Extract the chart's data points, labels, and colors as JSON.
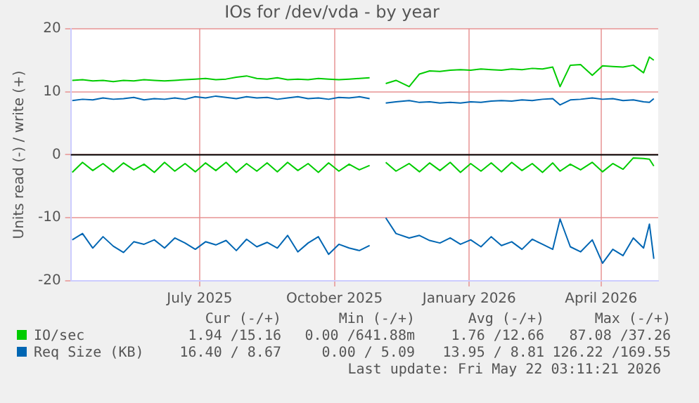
{
  "chart_data": {
    "type": "line",
    "title": "IOs for /dev/vda - by year",
    "ylabel": "Units read (-) / write (+)",
    "x": [
      "2025-04-05",
      "2025-04-12",
      "2025-04-19",
      "2025-04-26",
      "2025-05-03",
      "2025-05-10",
      "2025-05-17",
      "2025-05-24",
      "2025-05-31",
      "2025-06-07",
      "2025-06-14",
      "2025-06-21",
      "2025-06-28",
      "2025-07-05",
      "2025-07-12",
      "2025-07-19",
      "2025-07-26",
      "2025-08-02",
      "2025-08-09",
      "2025-08-16",
      "2025-08-23",
      "2025-08-30",
      "2025-09-06",
      "2025-09-13",
      "2025-09-20",
      "2025-09-27",
      "2025-10-04",
      "2025-10-11",
      "2025-10-18",
      "2025-10-25",
      "2025-11-01",
      "2025-11-05",
      "2025-11-12",
      "2025-11-21",
      "2025-11-28",
      "2025-12-05",
      "2025-12-12",
      "2025-12-19",
      "2025-12-26",
      "2026-01-02",
      "2026-01-09",
      "2026-01-16",
      "2026-01-23",
      "2026-01-30",
      "2026-02-06",
      "2026-02-13",
      "2026-02-20",
      "2026-02-27",
      "2026-03-04",
      "2026-03-11",
      "2026-03-18",
      "2026-03-26",
      "2026-04-02",
      "2026-04-09",
      "2026-04-16",
      "2026-04-23",
      "2026-04-30",
      "2026-05-04",
      "2026-05-07"
    ],
    "series": [
      {
        "name": "IO/sec",
        "color": "#00cc00",
        "values": [
          11.8,
          11.9,
          11.7,
          11.8,
          11.6,
          11.8,
          11.7,
          11.9,
          11.8,
          11.7,
          11.8,
          11.9,
          12.0,
          12.1,
          11.9,
          12.0,
          12.3,
          12.5,
          12.1,
          12.0,
          12.2,
          11.9,
          12.0,
          11.9,
          12.1,
          12.0,
          11.9,
          12.0,
          12.1,
          12.2,
          null,
          11.3,
          11.8,
          10.8,
          12.8,
          13.3,
          13.2,
          13.4,
          13.5,
          13.4,
          13.6,
          13.5,
          13.4,
          13.6,
          13.5,
          13.7,
          13.6,
          13.9,
          10.8,
          14.2,
          14.3,
          12.6,
          14.1,
          14.0,
          13.9,
          14.2,
          13.0,
          15.5,
          15.0
        ]
      },
      {
        "color": "#00cc00",
        "values": [
          -2.8,
          -1.2,
          -2.5,
          -1.4,
          -2.7,
          -1.3,
          -2.4,
          -1.5,
          -2.8,
          -1.2,
          -2.6,
          -1.4,
          -2.7,
          -1.3,
          -2.5,
          -1.2,
          -2.8,
          -1.4,
          -2.6,
          -1.3,
          -2.7,
          -1.2,
          -2.5,
          -1.4,
          -2.8,
          -1.3,
          -2.6,
          -1.5,
          -2.4,
          -1.7,
          null,
          -1.2,
          -2.6,
          -1.4,
          -2.7,
          -1.3,
          -2.5,
          -1.2,
          -2.8,
          -1.4,
          -2.6,
          -1.3,
          -2.7,
          -1.2,
          -2.5,
          -1.4,
          -2.8,
          -1.3,
          -2.6,
          -1.5,
          -2.4,
          -1.2,
          -2.7,
          -1.4,
          -2.3,
          -0.5,
          -0.6,
          -0.7,
          -1.8
        ]
      },
      {
        "name": "Req Size (KB)",
        "color": "#0066b3",
        "values": [
          8.6,
          8.8,
          8.7,
          9.0,
          8.8,
          8.9,
          9.1,
          8.7,
          8.9,
          8.8,
          9.0,
          8.8,
          9.2,
          9.0,
          9.3,
          9.1,
          8.9,
          9.2,
          9.0,
          9.1,
          8.8,
          9.0,
          9.2,
          8.9,
          9.0,
          8.8,
          9.1,
          9.0,
          9.2,
          8.9,
          null,
          8.2,
          8.4,
          8.6,
          8.3,
          8.4,
          8.2,
          8.3,
          8.2,
          8.4,
          8.3,
          8.5,
          8.6,
          8.5,
          8.7,
          8.6,
          8.8,
          8.9,
          7.9,
          8.7,
          8.8,
          9.0,
          8.8,
          8.9,
          8.6,
          8.7,
          8.4,
          8.3,
          8.9
        ]
      },
      {
        "color": "#0066b3",
        "values": [
          -13.5,
          -12.5,
          -14.8,
          -13.0,
          -14.5,
          -15.5,
          -13.8,
          -14.2,
          -13.5,
          -14.8,
          -13.2,
          -14.0,
          -15.0,
          -13.8,
          -14.3,
          -13.6,
          -15.2,
          -13.4,
          -14.6,
          -13.9,
          -14.8,
          -12.8,
          -15.4,
          -14.0,
          -13.0,
          -15.8,
          -14.2,
          -14.8,
          -15.2,
          -14.4,
          null,
          -10.0,
          -12.5,
          -13.2,
          -12.8,
          -13.6,
          -14.0,
          -13.2,
          -14.2,
          -13.5,
          -14.6,
          -13.0,
          -14.4,
          -13.8,
          -15.0,
          -13.4,
          -14.2,
          -15.0,
          -10.2,
          -14.6,
          -15.4,
          -13.5,
          -17.2,
          -15.0,
          -16.0,
          -13.2,
          -14.8,
          -11.0,
          -16.5
        ]
      }
    ],
    "xlim": [
      "2025-04-04",
      "2026-05-10"
    ],
    "xticks": [
      {
        "value": "2025-07-01",
        "label": "July 2025"
      },
      {
        "value": "2025-10-01",
        "label": "October 2025"
      },
      {
        "value": "2026-01-01",
        "label": "January 2026"
      },
      {
        "value": "2026-04-01",
        "label": "April 2026"
      }
    ],
    "ylim": [
      -20,
      20
    ],
    "yticks": [
      -20,
      -10,
      0,
      10,
      20
    ],
    "ref_lines": [
      {
        "axis": "y",
        "value": 0,
        "color": "#000000"
      }
    ],
    "grid": true,
    "legend": "bottom",
    "marker": "none",
    "line_style": "solid",
    "annotations": [
      "Cur (-/+)",
      "Min (-/+)",
      "Avg (-/+)",
      "Max (-/+)",
      "1.94 /15.16",
      "0.00 /641.88m",
      "1.76 /12.66",
      "87.08 /37.26",
      "16.40 / 8.67",
      "0.00 / 5.09",
      "13.95 / 8.81",
      "126.22 /169.55",
      "Last update: Fri May 22 03:11:21 2026"
    ]
  }
}
